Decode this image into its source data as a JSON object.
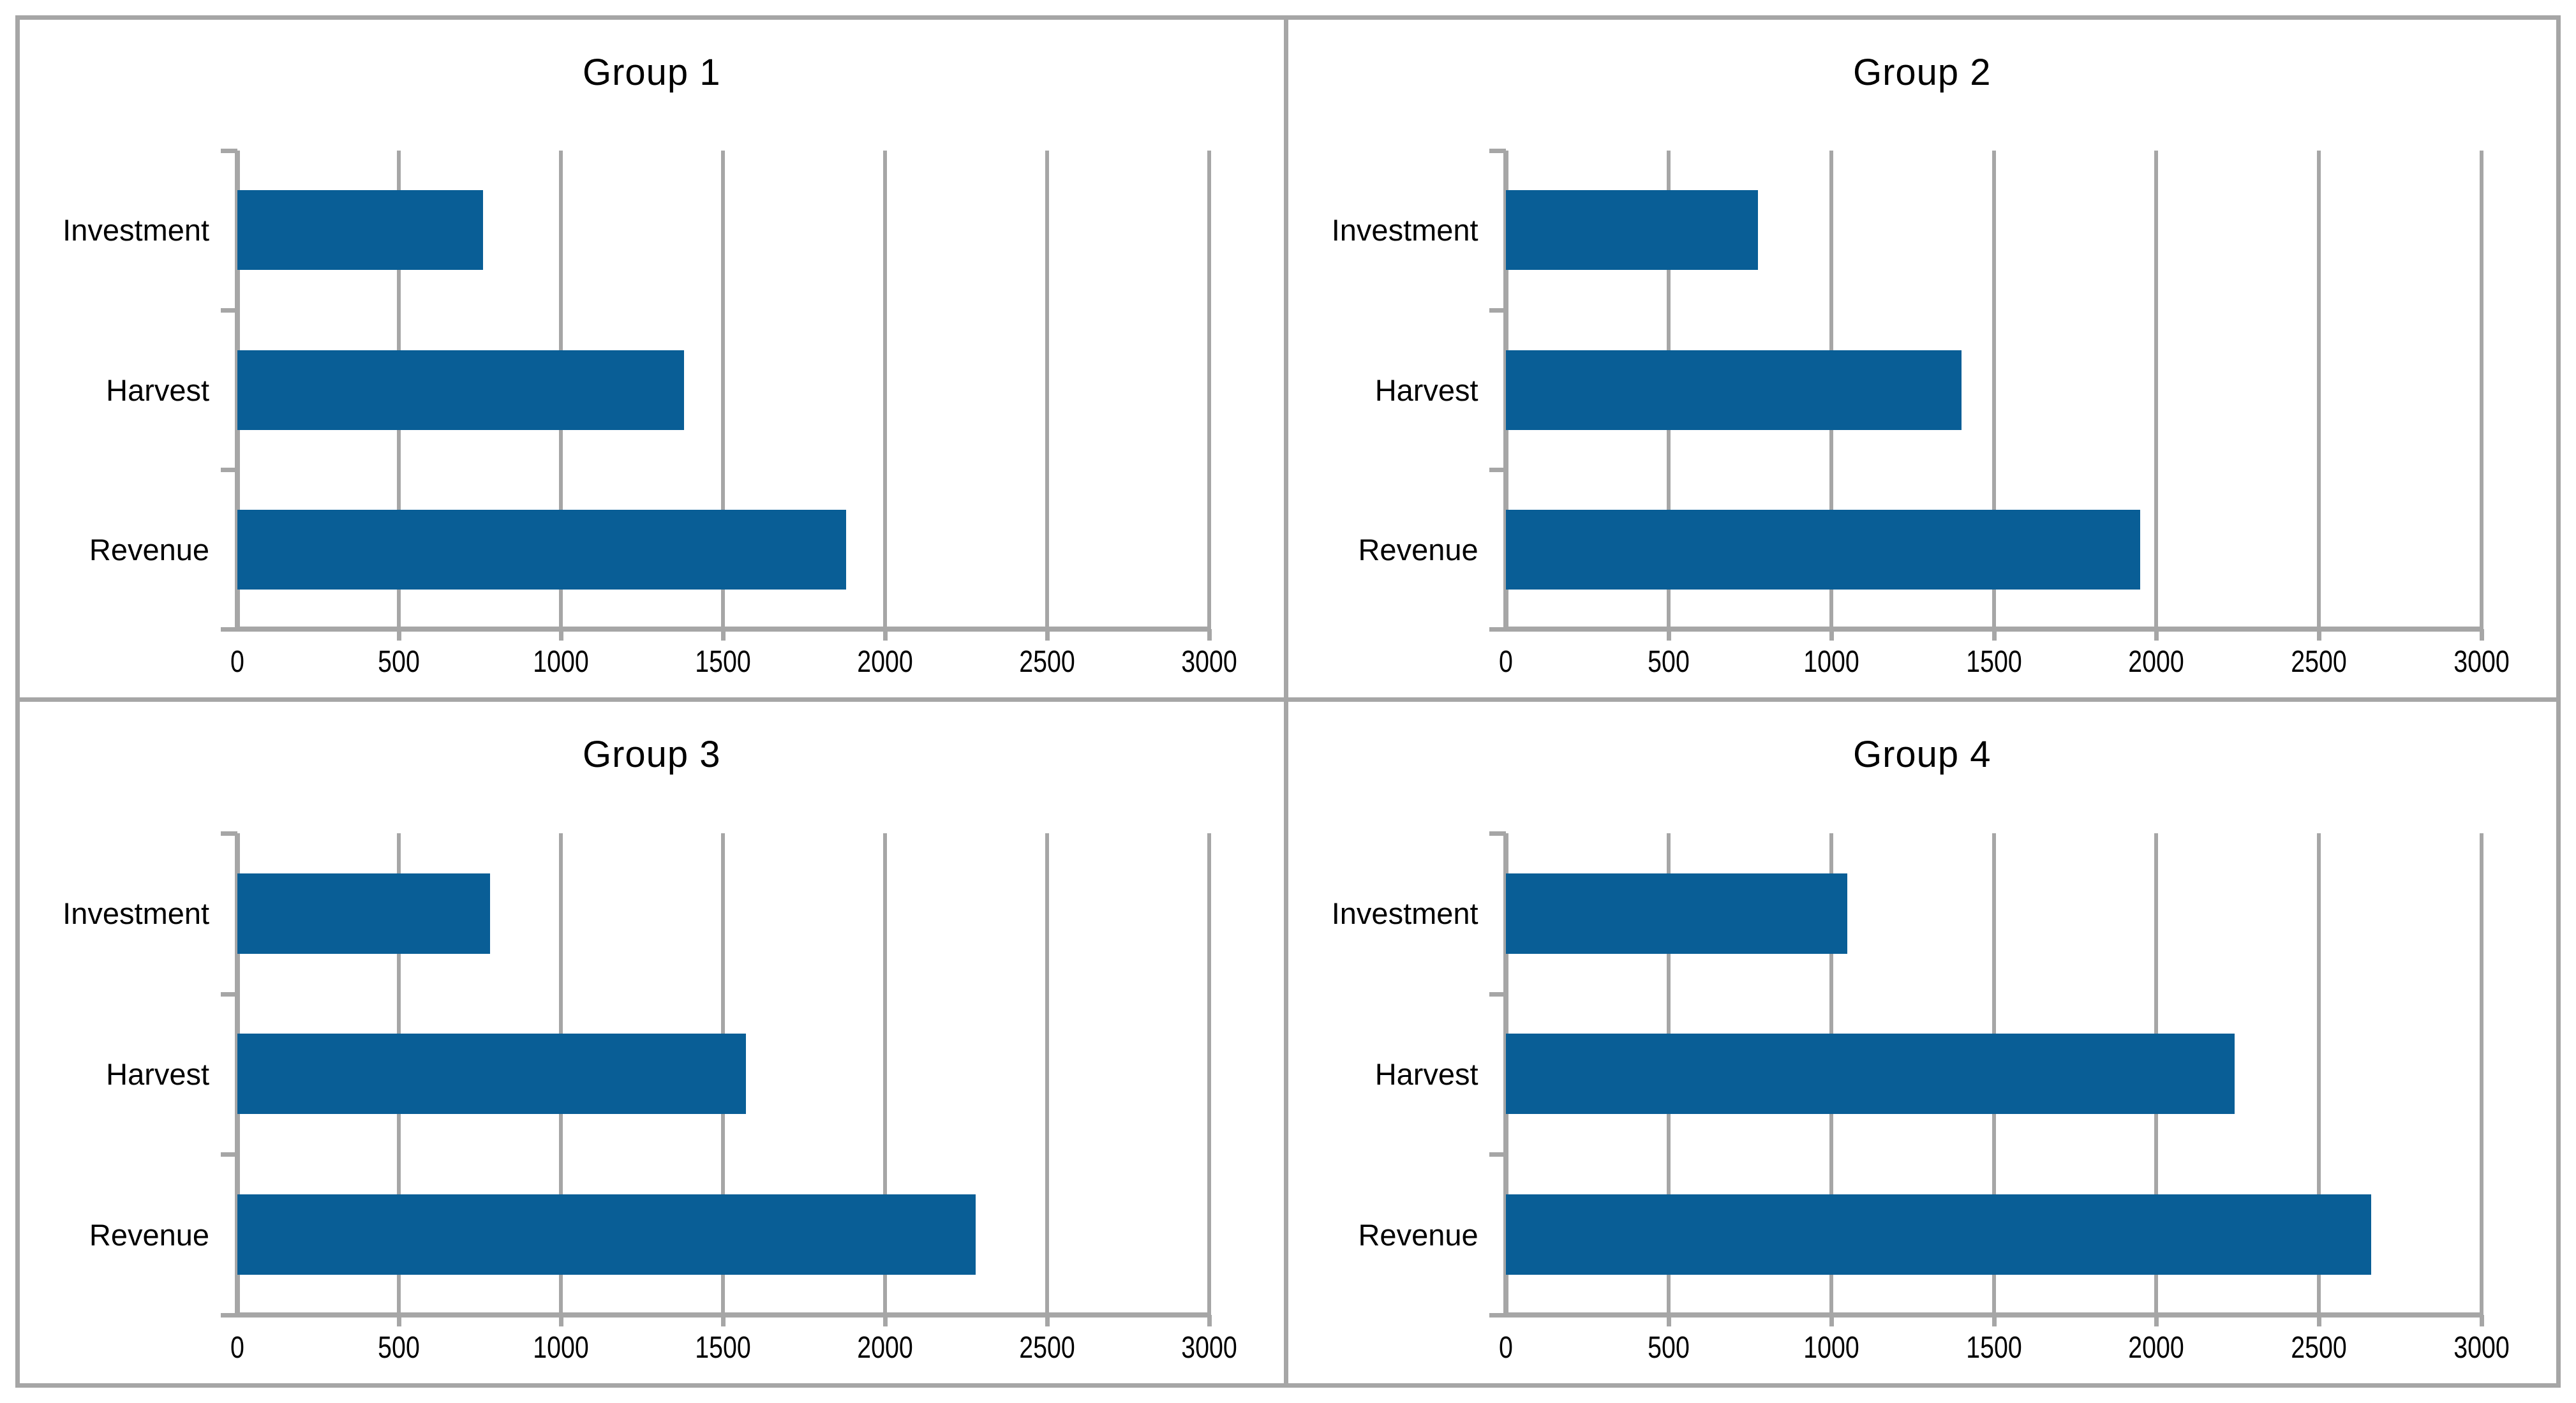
{
  "figure": {
    "kind": "2x2 grid of horizontal bar charts",
    "background": "#ffffff"
  },
  "colors": {
    "bar_fill": "#095e96",
    "grid_line": "#a6a6a6",
    "frame_border": "#a6a6a6",
    "text": "#000000"
  },
  "axis": {
    "tick_labels": [
      "0",
      "500",
      "1000",
      "1500",
      "2000",
      "2500",
      "3000"
    ],
    "min": 0,
    "max": 3000,
    "tick_step": 500
  },
  "chart_data": [
    {
      "type": "bar",
      "orientation": "horizontal",
      "title": "Group 1",
      "categories": [
        "Investment",
        "Harvest",
        "Revenue"
      ],
      "values": [
        760,
        1380,
        1880
      ],
      "xlim": [
        0,
        3000
      ],
      "xticks": [
        0,
        500,
        1000,
        1500,
        2000,
        2500,
        3000
      ],
      "grid": true,
      "legend": false
    },
    {
      "type": "bar",
      "orientation": "horizontal",
      "title": "Group 2",
      "categories": [
        "Investment",
        "Harvest",
        "Revenue"
      ],
      "values": [
        775,
        1400,
        1950
      ],
      "xlim": [
        0,
        3000
      ],
      "xticks": [
        0,
        500,
        1000,
        1500,
        2000,
        2500,
        3000
      ],
      "grid": true,
      "legend": false
    },
    {
      "type": "bar",
      "orientation": "horizontal",
      "title": "Group 3",
      "categories": [
        "Investment",
        "Harvest",
        "Revenue"
      ],
      "values": [
        780,
        1570,
        2280
      ],
      "xlim": [
        0,
        3000
      ],
      "xticks": [
        0,
        500,
        1000,
        1500,
        2000,
        2500,
        3000
      ],
      "grid": true,
      "legend": false
    },
    {
      "type": "bar",
      "orientation": "horizontal",
      "title": "Group 4",
      "categories": [
        "Investment",
        "Harvest",
        "Revenue"
      ],
      "values": [
        1050,
        2240,
        2660
      ],
      "xlim": [
        0,
        3000
      ],
      "xticks": [
        0,
        500,
        1000,
        1500,
        2000,
        2500,
        3000
      ],
      "grid": true,
      "legend": false
    }
  ]
}
